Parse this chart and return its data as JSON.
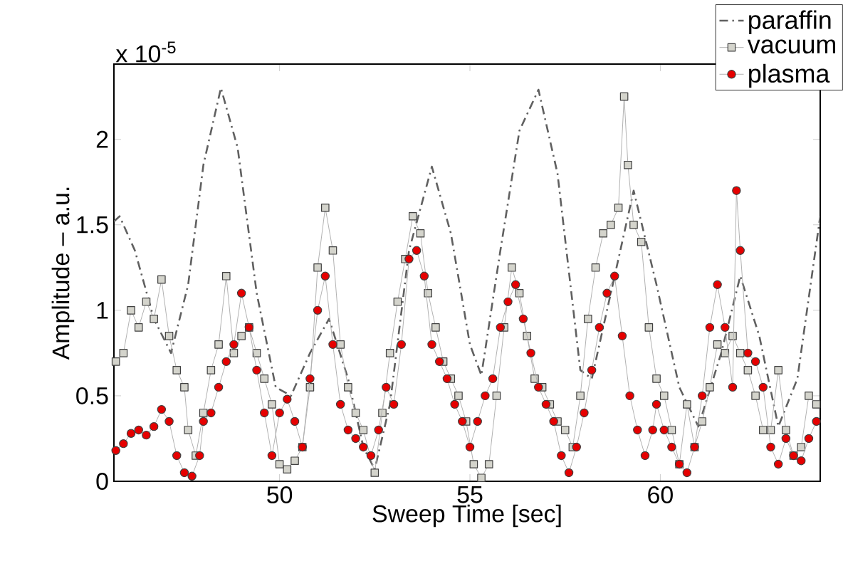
{
  "chart_data": {
    "type": "line",
    "xlabel": "Sweep Time [sec]",
    "ylabel": "Amplitude – a.u.",
    "annotations": [
      "x 10$^{-5}$"
    ],
    "xlim": [
      45.65,
      64.2
    ],
    "ylim": [
      0,
      2.44
    ],
    "xticks": [
      50,
      55,
      60
    ],
    "yticks": [
      0,
      0.5,
      1,
      1.5,
      2
    ],
    "grid": false,
    "legend": "top right",
    "series": [
      {
        "name": "paraffin",
        "color": "#606060",
        "marker": "none",
        "line_style": "dashdot",
        "x": [
          45.65,
          45.8,
          46.2,
          46.7,
          47.15,
          47.6,
          48.0,
          48.46,
          48.9,
          49.4,
          49.9,
          50.3,
          50.8,
          51.3,
          51.8,
          52.2,
          52.5,
          52.9,
          53.4,
          54.0,
          54.5,
          55.0,
          55.3,
          55.8,
          56.3,
          56.8,
          57.3,
          57.9,
          58.2,
          58.7,
          59.3,
          59.9,
          60.5,
          61.0,
          61.6,
          62.1,
          62.6,
          63.1,
          63.6,
          64.2
        ],
        "values": [
          1.52,
          1.55,
          1.35,
          0.95,
          0.75,
          1.15,
          1.85,
          2.3,
          1.95,
          1.1,
          0.55,
          0.5,
          0.75,
          0.95,
          0.6,
          0.2,
          0.07,
          0.45,
          1.35,
          1.84,
          1.45,
          0.8,
          0.62,
          1.35,
          2.05,
          2.29,
          1.8,
          0.65,
          0.6,
          1.1,
          1.7,
          1.15,
          0.55,
          0.32,
          0.75,
          1.2,
          0.85,
          0.32,
          0.6,
          1.55
        ]
      },
      {
        "name": "vacuum",
        "color": "#d4d4cc",
        "marker": "square",
        "line_style": "solid",
        "x": [
          45.7,
          45.9,
          46.1,
          46.3,
          46.5,
          46.7,
          46.9,
          47.1,
          47.3,
          47.5,
          47.6,
          47.8,
          48.0,
          48.2,
          48.4,
          48.6,
          48.8,
          49.0,
          49.2,
          49.4,
          49.6,
          49.8,
          50.0,
          50.2,
          50.4,
          50.6,
          50.8,
          51.0,
          51.2,
          51.4,
          51.6,
          51.8,
          52.0,
          52.2,
          52.5,
          52.7,
          52.9,
          53.1,
          53.3,
          53.5,
          53.7,
          53.9,
          54.1,
          54.3,
          54.5,
          54.7,
          54.9,
          55.1,
          55.3,
          55.5,
          55.7,
          55.9,
          56.1,
          56.3,
          56.5,
          56.7,
          56.9,
          57.1,
          57.3,
          57.5,
          57.7,
          57.9,
          58.1,
          58.3,
          58.5,
          58.7,
          58.9,
          59.05,
          59.15,
          59.3,
          59.5,
          59.7,
          59.9,
          60.1,
          60.3,
          60.5,
          60.7,
          60.9,
          61.1,
          61.3,
          61.5,
          61.7,
          61.9,
          62.1,
          62.3,
          62.5,
          62.7,
          62.9,
          63.1,
          63.3,
          63.5,
          63.7,
          63.9,
          64.1
        ],
        "values": [
          0.7,
          0.75,
          1.0,
          0.9,
          1.05,
          0.95,
          1.18,
          0.85,
          0.65,
          0.55,
          0.3,
          0.15,
          0.4,
          0.65,
          0.8,
          1.2,
          0.75,
          0.85,
          0.9,
          0.75,
          0.6,
          0.45,
          0.1,
          0.07,
          0.12,
          0.2,
          0.55,
          1.25,
          1.6,
          1.35,
          0.8,
          0.55,
          0.4,
          0.3,
          0.05,
          0.4,
          0.75,
          1.05,
          1.3,
          1.55,
          1.45,
          1.1,
          0.9,
          0.7,
          0.6,
          0.5,
          0.35,
          0.1,
          0.02,
          0.1,
          0.5,
          0.9,
          1.25,
          1.1,
          0.85,
          0.6,
          0.55,
          0.45,
          0.35,
          0.3,
          0.2,
          0.5,
          0.95,
          1.25,
          1.45,
          1.5,
          1.6,
          2.25,
          1.85,
          1.5,
          1.4,
          0.9,
          0.6,
          0.5,
          0.3,
          0.1,
          0.45,
          0.2,
          0.35,
          0.55,
          0.8,
          0.75,
          0.85,
          0.75,
          0.65,
          0.5,
          0.3,
          0.3,
          0.65,
          0.3,
          0.15,
          0.2,
          0.5,
          0.45
        ]
      },
      {
        "name": "plasma",
        "color": "#e60000",
        "marker": "circle",
        "line_style": "solid",
        "x": [
          45.7,
          45.9,
          46.1,
          46.3,
          46.5,
          46.7,
          46.9,
          47.1,
          47.3,
          47.5,
          47.7,
          47.9,
          48.0,
          48.2,
          48.4,
          48.6,
          48.8,
          49.0,
          49.2,
          49.4,
          49.6,
          49.8,
          50.0,
          50.2,
          50.4,
          50.6,
          50.8,
          51.0,
          51.2,
          51.4,
          51.6,
          51.8,
          52.0,
          52.2,
          52.4,
          52.6,
          52.8,
          53.0,
          53.2,
          53.4,
          53.6,
          53.8,
          54.0,
          54.2,
          54.4,
          54.6,
          54.8,
          55.0,
          55.2,
          55.4,
          55.6,
          55.8,
          56.0,
          56.2,
          56.4,
          56.6,
          56.8,
          57.0,
          57.2,
          57.4,
          57.6,
          57.8,
          58.0,
          58.2,
          58.4,
          58.6,
          58.8,
          59.0,
          59.2,
          59.4,
          59.6,
          59.8,
          59.9,
          60.1,
          60.3,
          60.5,
          60.7,
          60.9,
          61.1,
          61.3,
          61.5,
          61.7,
          61.9,
          62.0,
          62.1,
          62.3,
          62.5,
          62.7,
          62.9,
          63.1,
          63.3,
          63.5,
          63.7,
          63.9,
          64.1
        ],
        "values": [
          0.18,
          0.22,
          0.28,
          0.3,
          0.27,
          0.32,
          0.42,
          0.35,
          0.15,
          0.05,
          0.03,
          0.15,
          0.35,
          0.4,
          0.55,
          0.7,
          0.8,
          1.1,
          0.9,
          0.65,
          0.4,
          0.15,
          0.4,
          0.48,
          0.35,
          0.2,
          0.6,
          1.0,
          1.2,
          0.8,
          0.45,
          0.3,
          0.25,
          0.2,
          0.15,
          0.3,
          0.55,
          0.45,
          0.8,
          1.3,
          1.35,
          1.2,
          0.8,
          0.7,
          0.6,
          0.45,
          0.35,
          0.2,
          0.35,
          0.5,
          0.6,
          0.9,
          1.05,
          1.15,
          0.95,
          0.75,
          0.55,
          0.45,
          0.35,
          0.15,
          0.05,
          0.2,
          0.4,
          0.65,
          0.9,
          1.1,
          1.2,
          0.85,
          0.5,
          0.3,
          0.15,
          0.3,
          0.45,
          0.3,
          0.2,
          0.1,
          0.05,
          0.2,
          0.5,
          0.9,
          1.15,
          0.9,
          0.55,
          1.7,
          1.35,
          0.75,
          0.7,
          0.55,
          0.2,
          0.1,
          0.25,
          0.15,
          0.12,
          0.25,
          0.35
        ]
      }
    ]
  }
}
